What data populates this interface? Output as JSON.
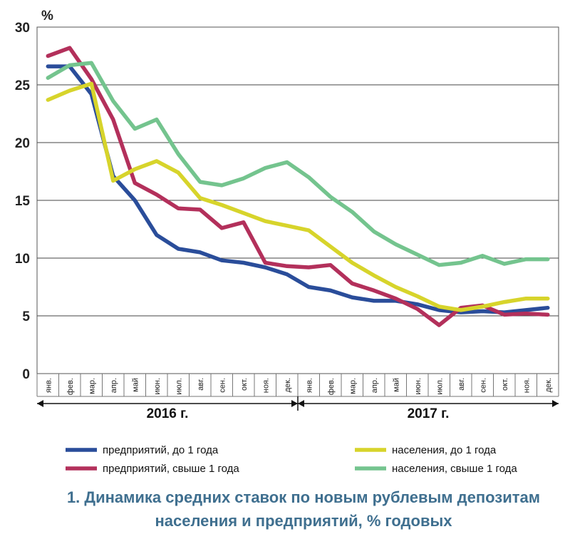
{
  "chart_data": {
    "type": "line",
    "title": [
      "1. Динамика средних ставок по новым рублевым депозитам",
      "населения и предприятий, % годовых"
    ],
    "ylabel": "%",
    "ylim": [
      0,
      30
    ],
    "yticks": [
      0,
      5,
      10,
      15,
      20,
      25,
      30
    ],
    "grid": true,
    "categories": [
      "янв.",
      "фев.",
      "мар.",
      "апр.",
      "май",
      "июн.",
      "июл.",
      "авг.",
      "сен.",
      "окт.",
      "ноя.",
      "дек.",
      "янв.",
      "фев.",
      "мар.",
      "апр.",
      "май",
      "июн.",
      "июл.",
      "авг.",
      "сен.",
      "окт.",
      "ноя.",
      "дек."
    ],
    "year_labels": [
      "2016 г.",
      "2017 г."
    ],
    "legend_position": "bottom",
    "series": [
      {
        "name": "предприятий, до 1 года",
        "color": "#2a4d9a",
        "values": [
          26.6,
          26.6,
          24.2,
          17.1,
          15.0,
          12.0,
          10.8,
          10.5,
          9.8,
          9.6,
          9.2,
          8.6,
          7.5,
          7.2,
          6.6,
          6.3,
          6.3,
          6.0,
          5.5,
          5.3,
          5.4,
          5.3,
          5.5,
          5.7
        ]
      },
      {
        "name": "предприятий, свыше 1 года",
        "color": "#b3305b",
        "values": [
          27.5,
          28.2,
          25.5,
          22.0,
          16.5,
          15.5,
          14.3,
          14.2,
          12.6,
          13.1,
          9.6,
          9.3,
          9.2,
          9.4,
          7.8,
          7.2,
          6.5,
          5.6,
          4.2,
          5.7,
          5.9,
          5.1,
          5.2,
          5.1
        ]
      },
      {
        "name": "населения, до 1 года",
        "color": "#d7d42b",
        "values": [
          23.7,
          24.5,
          25.1,
          16.7,
          17.7,
          18.4,
          17.4,
          15.2,
          14.6,
          13.9,
          13.2,
          12.8,
          12.4,
          11.0,
          9.6,
          8.5,
          7.5,
          6.7,
          5.8,
          5.5,
          5.8,
          6.2,
          6.5,
          6.5
        ]
      },
      {
        "name": "населения, свыше 1 года",
        "color": "#74c48e",
        "values": [
          25.6,
          26.7,
          26.9,
          23.6,
          21.2,
          22.0,
          19.0,
          16.6,
          16.3,
          16.9,
          17.8,
          18.3,
          17.0,
          15.3,
          14.0,
          12.3,
          11.2,
          10.3,
          9.4,
          9.6,
          10.2,
          9.5,
          9.9,
          9.9
        ]
      }
    ]
  }
}
